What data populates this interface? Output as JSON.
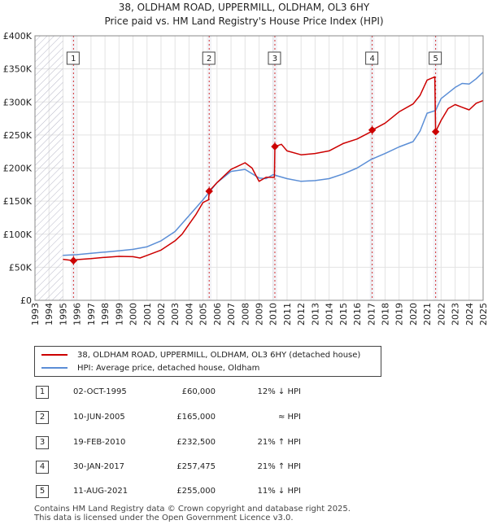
{
  "title_line1": "38, OLDHAM ROAD, UPPERMILL, OLDHAM, OL3 6HY",
  "title_line2": "Price paid vs. HM Land Registry's House Price Index (HPI)",
  "colors": {
    "property": "#cc0000",
    "hpi": "#5b8ed6",
    "grid": "#e3e3e3",
    "shade": "#dcdce8"
  },
  "chart_data": {
    "type": "line",
    "ylim": [
      0,
      400000
    ],
    "xlim": [
      1993,
      2025
    ],
    "y_ticks": [
      0,
      50000,
      100000,
      150000,
      200000,
      250000,
      300000,
      350000,
      400000
    ],
    "y_tick_labels": [
      "£0",
      "£50K",
      "£100K",
      "£150K",
      "£200K",
      "£250K",
      "£300K",
      "£350K",
      "£400K"
    ],
    "x_ticks": [
      1993,
      1994,
      1995,
      1996,
      1997,
      1998,
      1999,
      2000,
      2001,
      2002,
      2003,
      2004,
      2005,
      2006,
      2007,
      2008,
      2009,
      2010,
      2011,
      2012,
      2013,
      2014,
      2015,
      2016,
      2017,
      2018,
      2019,
      2020,
      2021,
      2022,
      2023,
      2024,
      2025
    ],
    "hatched_until": 1995,
    "sales": [
      {
        "id": "1",
        "year": 1995.75,
        "price": 60000
      },
      {
        "id": "2",
        "year": 2005.44,
        "price": 165000
      },
      {
        "id": "3",
        "year": 2010.13,
        "price": 232500
      },
      {
        "id": "4",
        "year": 2017.08,
        "price": 257475
      },
      {
        "id": "5",
        "year": 2021.61,
        "price": 255000
      }
    ],
    "series": [
      {
        "name": "38, OLDHAM ROAD, UPPERMILL, OLDHAM, OL3 6HY (detached house)",
        "points": [
          [
            1995,
            62000
          ],
          [
            1995.75,
            60000
          ],
          [
            1996,
            61500
          ],
          [
            1997,
            63000
          ],
          [
            1998,
            65000
          ],
          [
            1999,
            66500
          ],
          [
            2000,
            66000
          ],
          [
            2000.5,
            64000
          ],
          [
            2001,
            68000
          ],
          [
            2002,
            76000
          ],
          [
            2003,
            90000
          ],
          [
            2003.5,
            100000
          ],
          [
            2004,
            115000
          ],
          [
            2004.5,
            130000
          ],
          [
            2005,
            148000
          ],
          [
            2005.4,
            152000
          ],
          [
            2005.44,
            165000
          ],
          [
            2006,
            178000
          ],
          [
            2007,
            198000
          ],
          [
            2007.5,
            203000
          ],
          [
            2008,
            208000
          ],
          [
            2008.5,
            200000
          ],
          [
            2009,
            180000
          ],
          [
            2009.5,
            186000
          ],
          [
            2010.1,
            186000
          ],
          [
            2010.13,
            232500
          ],
          [
            2010.6,
            236000
          ],
          [
            2011,
            226000
          ],
          [
            2012,
            220000
          ],
          [
            2013,
            222000
          ],
          [
            2014,
            226000
          ],
          [
            2015,
            237000
          ],
          [
            2016,
            244000
          ],
          [
            2017,
            255000
          ],
          [
            2017.08,
            257475
          ],
          [
            2018,
            268000
          ],
          [
            2019,
            285000
          ],
          [
            2020,
            297000
          ],
          [
            2020.5,
            310000
          ],
          [
            2021,
            333000
          ],
          [
            2021.55,
            338000
          ],
          [
            2021.61,
            255000
          ],
          [
            2022,
            272000
          ],
          [
            2022.5,
            290000
          ],
          [
            2023,
            296000
          ],
          [
            2023.5,
            292000
          ],
          [
            2024,
            288000
          ],
          [
            2024.5,
            298000
          ],
          [
            2025,
            302000
          ]
        ]
      },
      {
        "name": "HPI: Average price, detached house, Oldham",
        "points": [
          [
            1995,
            68000
          ],
          [
            1996,
            69000
          ],
          [
            1997,
            71000
          ],
          [
            1998,
            73000
          ],
          [
            1999,
            75000
          ],
          [
            2000,
            77000
          ],
          [
            2001,
            81000
          ],
          [
            2002,
            90000
          ],
          [
            2003,
            104000
          ],
          [
            2004,
            128000
          ],
          [
            2005,
            152000
          ],
          [
            2005.5,
            165000
          ],
          [
            2006,
            178000
          ],
          [
            2007,
            195000
          ],
          [
            2008,
            198000
          ],
          [
            2009,
            185000
          ],
          [
            2009.5,
            184000
          ],
          [
            2010,
            190000
          ],
          [
            2011,
            184000
          ],
          [
            2012,
            180000
          ],
          [
            2013,
            181000
          ],
          [
            2014,
            184000
          ],
          [
            2015,
            191000
          ],
          [
            2016,
            200000
          ],
          [
            2017,
            213000
          ],
          [
            2018,
            222000
          ],
          [
            2019,
            232000
          ],
          [
            2020,
            240000
          ],
          [
            2020.5,
            256000
          ],
          [
            2021,
            283000
          ],
          [
            2021.6,
            287000
          ],
          [
            2022,
            305000
          ],
          [
            2023,
            322000
          ],
          [
            2023.5,
            328000
          ],
          [
            2024,
            327000
          ],
          [
            2024.5,
            335000
          ],
          [
            2025,
            345000
          ]
        ]
      }
    ]
  },
  "legend": {
    "property_label": "38, OLDHAM ROAD, UPPERMILL, OLDHAM, OL3 6HY (detached house)",
    "hpi_label": "HPI: Average price, detached house, Oldham"
  },
  "table": [
    {
      "id": "1",
      "date": "02-OCT-1995",
      "price": "£60,000",
      "hpi": "12% ↓ HPI"
    },
    {
      "id": "2",
      "date": "10-JUN-2005",
      "price": "£165,000",
      "hpi": "≈ HPI"
    },
    {
      "id": "3",
      "date": "19-FEB-2010",
      "price": "£232,500",
      "hpi": "21% ↑ HPI"
    },
    {
      "id": "4",
      "date": "30-JAN-2017",
      "price": "£257,475",
      "hpi": "21% ↑ HPI"
    },
    {
      "id": "5",
      "date": "11-AUG-2021",
      "price": "£255,000",
      "hpi": "11% ↓ HPI"
    }
  ],
  "footer_line1": "Contains HM Land Registry data © Crown copyright and database right 2025.",
  "footer_line2": "This data is licensed under the Open Government Licence v3.0."
}
